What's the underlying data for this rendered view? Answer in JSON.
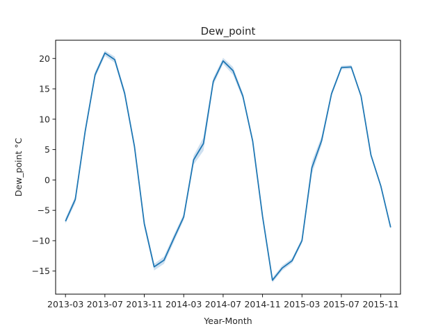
{
  "chart_data": {
    "type": "line",
    "title": "Dew_point",
    "xlabel": "Year-Month",
    "ylabel": "Dew_point °C",
    "x_ticks": [
      "2013-03",
      "2013-07",
      "2013-11",
      "2014-03",
      "2014-07",
      "2014-11",
      "2015-03",
      "2015-07",
      "2015-11"
    ],
    "y_ticks": [
      -15,
      -10,
      -5,
      0,
      5,
      10,
      15,
      20
    ],
    "ylim": [
      -18.8,
      23
    ],
    "xlim": [
      "2013-02",
      "2016-01"
    ],
    "grid": false,
    "line_color": "#1f77b4",
    "band_color": "#a6c6e4",
    "series": [
      {
        "x": [
          "2013-03",
          "2013-04",
          "2013-05",
          "2013-06",
          "2013-07",
          "2013-08",
          "2013-09",
          "2013-10",
          "2013-11",
          "2013-12",
          "2014-01",
          "2014-02",
          "2014-03",
          "2014-04",
          "2014-05",
          "2014-06",
          "2014-07",
          "2014-08",
          "2014-09",
          "2014-10",
          "2014-11",
          "2014-12",
          "2015-01",
          "2015-02",
          "2015-03",
          "2015-04",
          "2015-05",
          "2015-06",
          "2015-07",
          "2015-08",
          "2015-09",
          "2015-10",
          "2015-11",
          "2015-12"
        ],
        "values": [
          -6.8,
          -3.2,
          8.0,
          17.3,
          20.9,
          19.8,
          14.3,
          5.5,
          -7.2,
          -14.3,
          -13.2,
          -9.6,
          -6.1,
          3.3,
          6.0,
          16.2,
          19.6,
          18.0,
          13.8,
          6.4,
          -6.0,
          -16.5,
          -14.5,
          -13.3,
          -10.0,
          2.0,
          6.5,
          14.2,
          18.5,
          18.6,
          13.8,
          4.1,
          -1.0,
          -7.8
        ],
        "ci_low": [
          -7.2,
          -3.8,
          7.5,
          16.8,
          20.4,
          19.3,
          13.8,
          5.0,
          -7.8,
          -14.9,
          -13.8,
          -10.2,
          -6.6,
          2.5,
          4.8,
          15.6,
          19.1,
          17.3,
          13.3,
          6.0,
          -6.4,
          -16.9,
          -14.9,
          -13.7,
          -10.4,
          1.0,
          5.8,
          13.8,
          18.2,
          18.3,
          13.5,
          3.8,
          -1.3,
          -8.1
        ],
        "ci_high": [
          -6.3,
          -2.7,
          8.5,
          17.8,
          21.3,
          20.3,
          14.8,
          6.0,
          -6.6,
          -13.8,
          -12.6,
          -9.0,
          -5.6,
          4.0,
          7.0,
          16.8,
          20.1,
          18.6,
          14.3,
          6.8,
          -5.6,
          -16.1,
          -14.1,
          -12.9,
          -9.6,
          3.0,
          7.2,
          14.6,
          18.8,
          18.9,
          14.1,
          4.4,
          -0.7,
          -7.5
        ]
      }
    ]
  }
}
